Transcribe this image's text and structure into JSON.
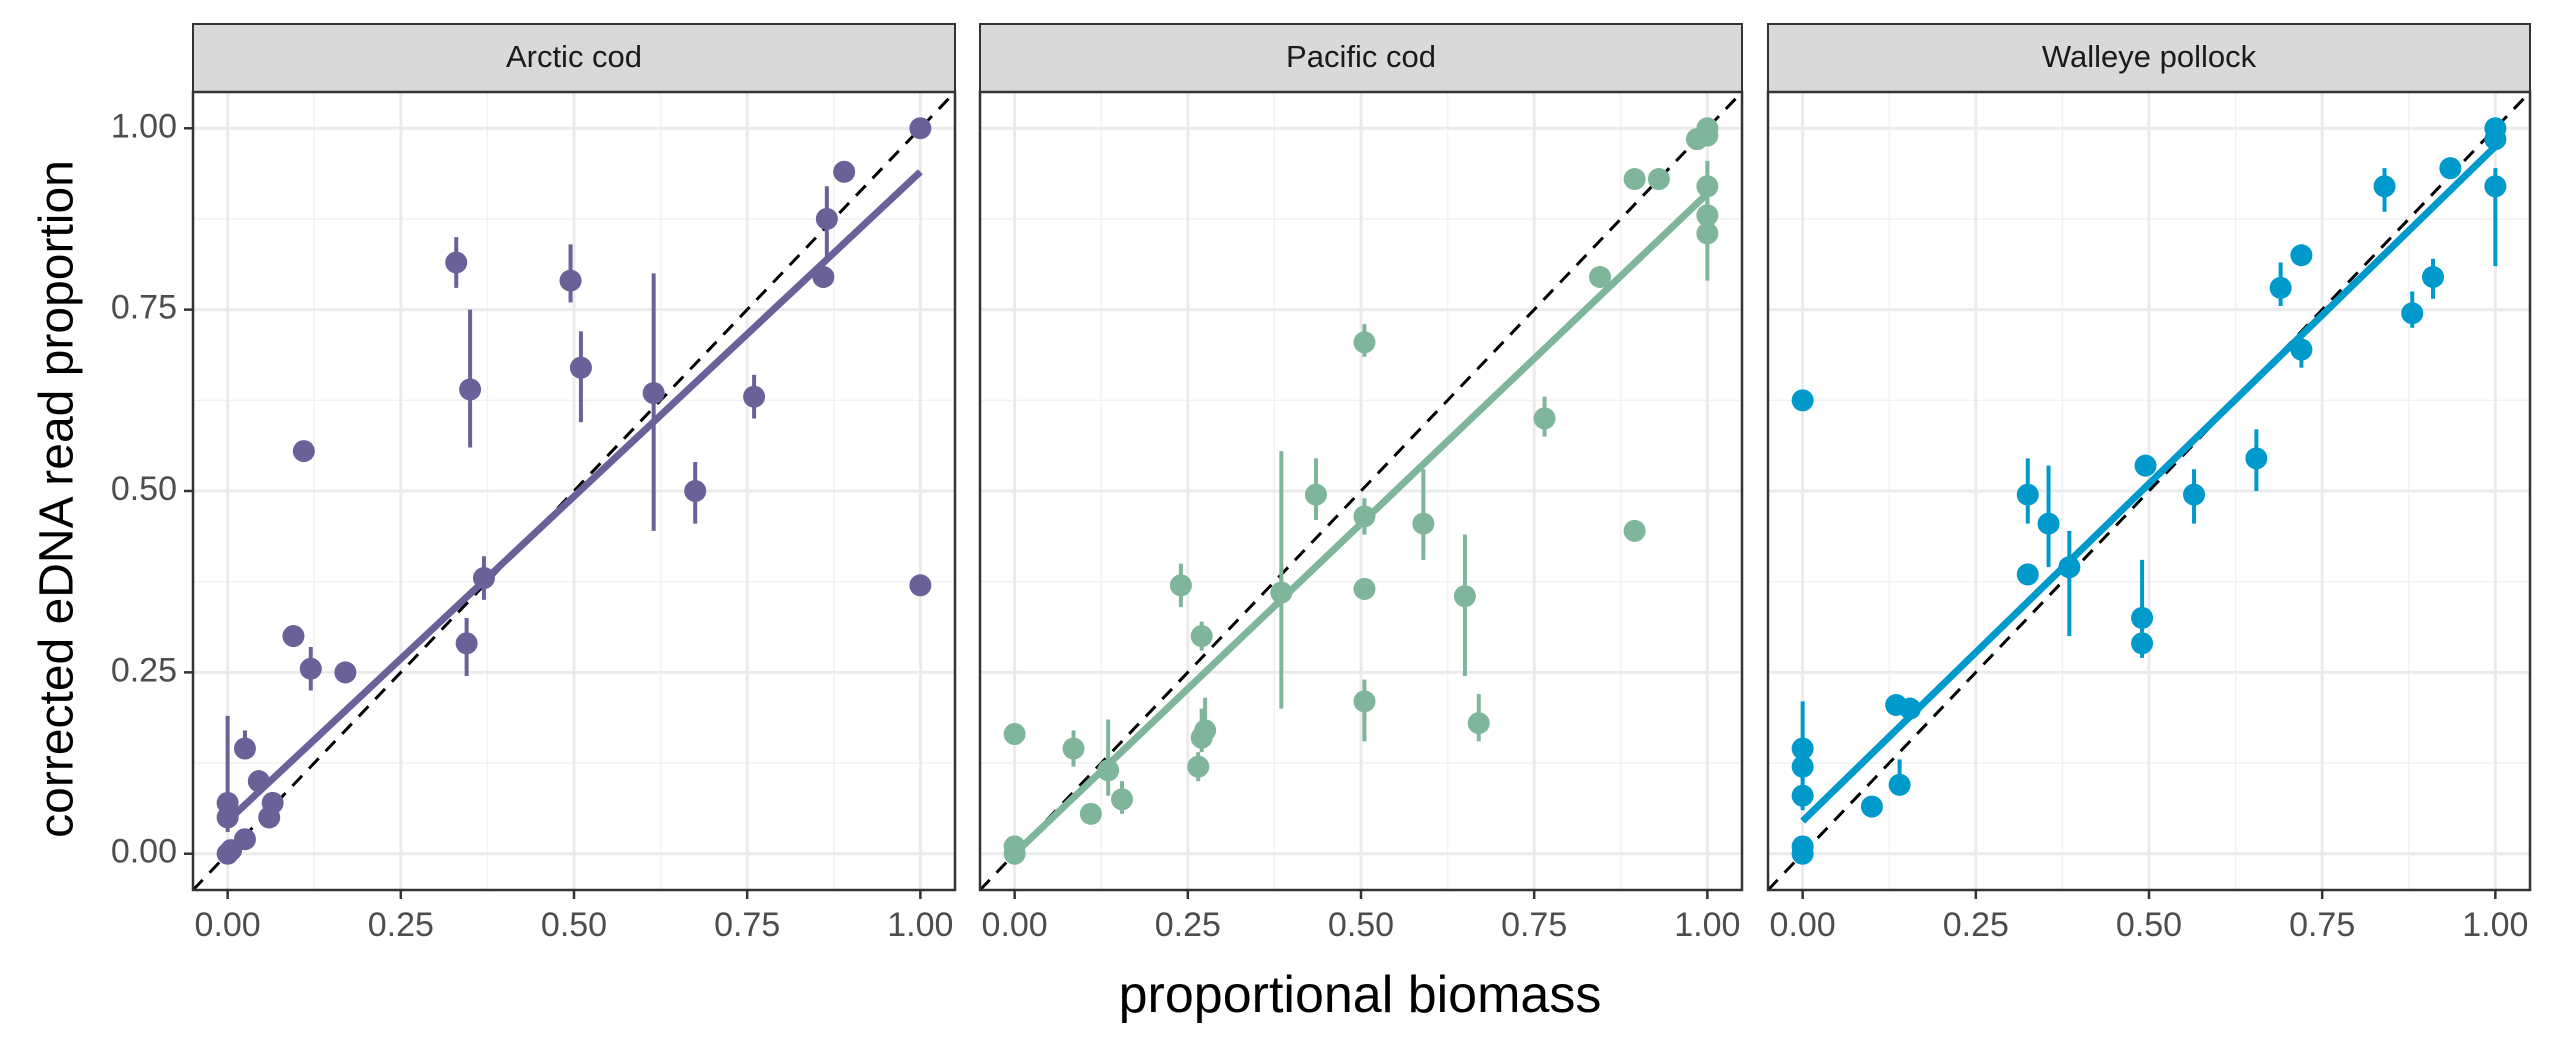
{
  "chart_data": {
    "type": "scatter",
    "xlabel": "proportional biomass",
    "ylabel": "corrected eDNA read proportion",
    "xlim": [
      -0.05,
      1.05
    ],
    "ylim": [
      -0.05,
      1.05
    ],
    "x_ticks": [
      "0.00",
      "0.25",
      "0.50",
      "0.75",
      "1.00"
    ],
    "y_ticks": [
      "0.00",
      "0.25",
      "0.50",
      "0.75",
      "1.00"
    ],
    "grid": true,
    "reference_line": "1:1 dashed",
    "facets": [
      {
        "name": "Arctic cod",
        "color": "#6a6199",
        "fit": [
          [
            0.0,
            0.045
          ],
          [
            1.0,
            0.94
          ]
        ],
        "points": [
          [
            0.0,
            0.0,
            0.0,
            0.0
          ],
          [
            0.0,
            0.05,
            0.03,
            0.08
          ],
          [
            0.0,
            0.07,
            0.04,
            0.19
          ],
          [
            0.005,
            0.005,
            0.0,
            0.01
          ],
          [
            0.025,
            0.02,
            0.01,
            0.03
          ],
          [
            0.025,
            0.145,
            0.13,
            0.17
          ],
          [
            0.045,
            0.1,
            0.085,
            0.115
          ],
          [
            0.06,
            0.05,
            0.035,
            0.065
          ],
          [
            0.065,
            0.07,
            0.055,
            0.085
          ],
          [
            0.095,
            0.3,
            0.285,
            0.315
          ],
          [
            0.11,
            0.555,
            0.545,
            0.565
          ],
          [
            0.12,
            0.255,
            0.225,
            0.285
          ],
          [
            0.17,
            0.25,
            0.235,
            0.265
          ],
          [
            0.33,
            0.815,
            0.78,
            0.85
          ],
          [
            0.345,
            0.29,
            0.245,
            0.325
          ],
          [
            0.35,
            0.64,
            0.56,
            0.75
          ],
          [
            0.37,
            0.38,
            0.35,
            0.41
          ],
          [
            0.495,
            0.79,
            0.76,
            0.84
          ],
          [
            0.51,
            0.67,
            0.595,
            0.72
          ],
          [
            0.615,
            0.635,
            0.445,
            0.8
          ],
          [
            0.675,
            0.5,
            0.455,
            0.54
          ],
          [
            0.76,
            0.63,
            0.6,
            0.66
          ],
          [
            0.86,
            0.795,
            0.78,
            0.81
          ],
          [
            0.865,
            0.875,
            0.82,
            0.92
          ],
          [
            0.89,
            0.94,
            0.93,
            0.95
          ],
          [
            1.0,
            1.0,
            0.99,
            1.01
          ],
          [
            1.0,
            0.37,
            0.36,
            0.38
          ]
        ]
      },
      {
        "name": "Pacific cod",
        "color": "#7fb59b",
        "fit": [
          [
            0.0,
            0.0
          ],
          [
            1.0,
            0.91
          ]
        ],
        "points": [
          [
            0.0,
            0.0,
            0.0,
            0.0
          ],
          [
            0.0,
            0.01,
            0.0,
            0.02
          ],
          [
            0.0,
            0.165,
            0.155,
            0.175
          ],
          [
            0.085,
            0.145,
            0.12,
            0.17
          ],
          [
            0.11,
            0.055,
            0.045,
            0.065
          ],
          [
            0.135,
            0.115,
            0.08,
            0.185
          ],
          [
            0.155,
            0.075,
            0.055,
            0.1
          ],
          [
            0.24,
            0.37,
            0.34,
            0.4
          ],
          [
            0.265,
            0.12,
            0.1,
            0.14
          ],
          [
            0.27,
            0.3,
            0.28,
            0.32
          ],
          [
            0.27,
            0.16,
            0.14,
            0.2
          ],
          [
            0.275,
            0.17,
            0.15,
            0.215
          ],
          [
            0.385,
            0.36,
            0.2,
            0.555
          ],
          [
            0.435,
            0.495,
            0.46,
            0.545
          ],
          [
            0.505,
            0.705,
            0.685,
            0.73
          ],
          [
            0.505,
            0.465,
            0.44,
            0.49
          ],
          [
            0.505,
            0.365,
            0.35,
            0.38
          ],
          [
            0.505,
            0.21,
            0.155,
            0.24
          ],
          [
            0.59,
            0.455,
            0.405,
            0.53
          ],
          [
            0.65,
            0.355,
            0.245,
            0.44
          ],
          [
            0.67,
            0.18,
            0.155,
            0.22
          ],
          [
            0.765,
            0.6,
            0.575,
            0.63
          ],
          [
            0.845,
            0.795,
            0.78,
            0.81
          ],
          [
            0.895,
            0.445,
            0.435,
            0.455
          ],
          [
            0.895,
            0.93,
            0.92,
            0.94
          ],
          [
            0.93,
            0.93,
            0.92,
            0.94
          ],
          [
            0.985,
            0.985,
            0.975,
            0.995
          ],
          [
            1.0,
            1.0,
            0.99,
            1.01
          ],
          [
            1.0,
            0.99,
            0.98,
            1.0
          ],
          [
            1.0,
            0.92,
            0.885,
            0.955
          ],
          [
            1.0,
            0.88,
            0.85,
            0.9
          ],
          [
            1.0,
            0.855,
            0.79,
            0.885
          ]
        ]
      },
      {
        "name": "Walleye pollock",
        "color": "#0099cc",
        "fit": [
          [
            0.0,
            0.045
          ],
          [
            1.0,
            0.975
          ]
        ],
        "points": [
          [
            0.0,
            0.0,
            0.0,
            0.0
          ],
          [
            0.0,
            0.01,
            0.0,
            0.02
          ],
          [
            0.0,
            0.08,
            0.06,
            0.1
          ],
          [
            0.0,
            0.12,
            0.1,
            0.14
          ],
          [
            0.0,
            0.145,
            0.1,
            0.21
          ],
          [
            0.0,
            0.625,
            0.615,
            0.635
          ],
          [
            0.1,
            0.065,
            0.055,
            0.075
          ],
          [
            0.135,
            0.205,
            0.195,
            0.215
          ],
          [
            0.14,
            0.095,
            0.08,
            0.13
          ],
          [
            0.155,
            0.2,
            0.185,
            0.215
          ],
          [
            0.325,
            0.385,
            0.37,
            0.4
          ],
          [
            0.325,
            0.495,
            0.455,
            0.545
          ],
          [
            0.355,
            0.455,
            0.395,
            0.535
          ],
          [
            0.385,
            0.395,
            0.3,
            0.445
          ],
          [
            0.49,
            0.325,
            0.275,
            0.405
          ],
          [
            0.49,
            0.29,
            0.27,
            0.31
          ],
          [
            0.495,
            0.535,
            0.52,
            0.55
          ],
          [
            0.565,
            0.495,
            0.455,
            0.53
          ],
          [
            0.655,
            0.545,
            0.5,
            0.585
          ],
          [
            0.69,
            0.78,
            0.755,
            0.815
          ],
          [
            0.72,
            0.825,
            0.81,
            0.84
          ],
          [
            0.72,
            0.695,
            0.67,
            0.715
          ],
          [
            0.84,
            0.92,
            0.885,
            0.945
          ],
          [
            0.88,
            0.745,
            0.725,
            0.775
          ],
          [
            0.91,
            0.795,
            0.765,
            0.82
          ],
          [
            0.935,
            0.945,
            0.935,
            0.955
          ],
          [
            1.0,
            1.0,
            0.99,
            1.01
          ],
          [
            1.0,
            0.985,
            0.975,
            0.995
          ],
          [
            1.0,
            0.92,
            0.81,
            0.945
          ]
        ]
      }
    ]
  }
}
